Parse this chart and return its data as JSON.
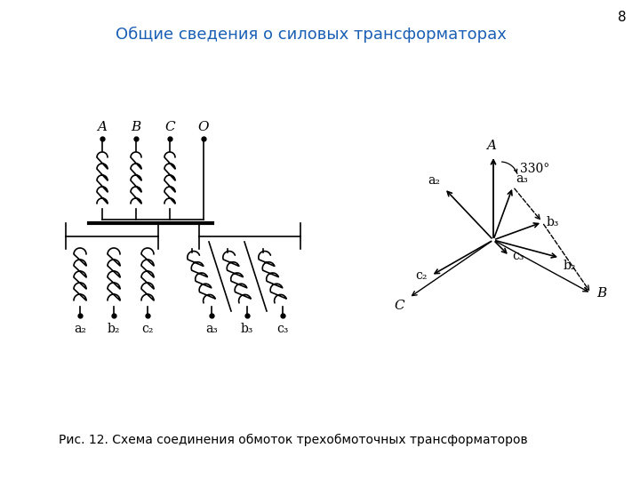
{
  "title": "Общие сведения о силовых трансформаторах",
  "title_color": "#1a5fb4",
  "caption": "Рис. 12. Схема соединения обмоток трехобмоточных трансформаторов",
  "page_number": "8",
  "bg_color": "#ffffff",
  "line_color": "#000000",
  "fig_width": 7.2,
  "fig_height": 5.4,
  "dpi": 100
}
